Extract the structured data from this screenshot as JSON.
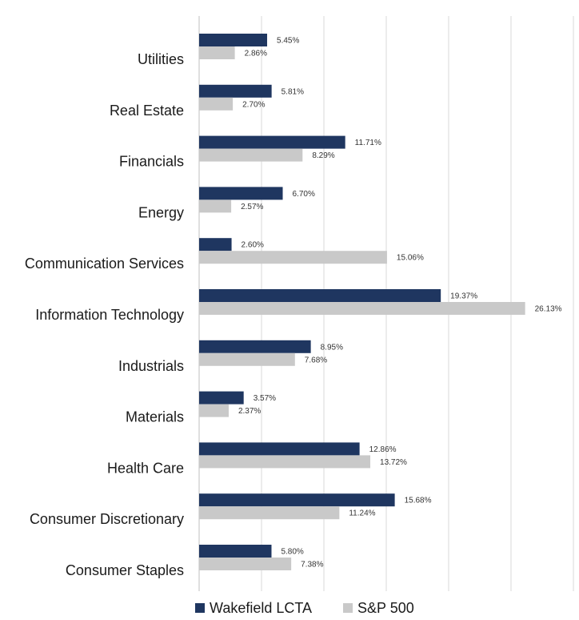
{
  "chart_data": {
    "type": "bar",
    "orientation": "horizontal",
    "categories": [
      "Utilities",
      "Real Estate",
      "Financials",
      "Energy",
      "Communication Services",
      "Information Technology",
      "Industrials",
      "Materials",
      "Health Care",
      "Consumer Discretionary",
      "Consumer Staples"
    ],
    "series": [
      {
        "name": "Wakefield LCTA",
        "color": "#1f3660",
        "values": [
          5.45,
          5.81,
          11.71,
          6.7,
          2.6,
          19.37,
          8.95,
          3.57,
          12.86,
          15.68,
          5.8
        ],
        "labels": [
          "5.45%",
          "5.81%",
          "11.71%",
          "6.70%",
          "2.60%",
          "19.37%",
          "8.95%",
          "3.57%",
          "12.86%",
          "15.68%",
          "5.80%"
        ]
      },
      {
        "name": "S&P 500",
        "color": "#c9c9c9",
        "values": [
          2.86,
          2.7,
          8.29,
          2.57,
          15.06,
          26.13,
          7.68,
          2.37,
          13.72,
          11.24,
          7.38
        ],
        "labels": [
          "2.86%",
          "2.70%",
          "8.29%",
          "2.57%",
          "15.06%",
          "26.13%",
          "7.68%",
          "2.37%",
          "13.72%",
          "11.24%",
          "7.38%"
        ]
      }
    ],
    "title": "",
    "xlabel": "",
    "ylabel": "",
    "xlim": [
      0,
      30
    ],
    "grid": "vertical",
    "legend": "bottom-center"
  }
}
